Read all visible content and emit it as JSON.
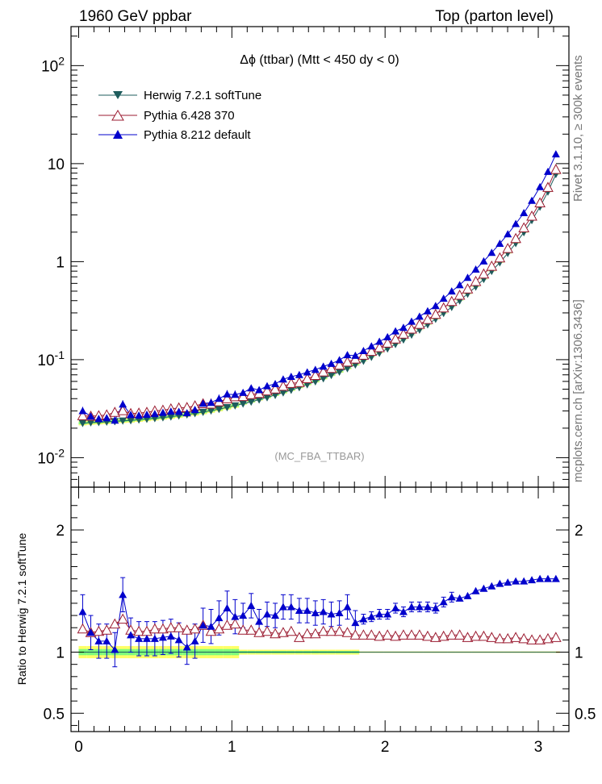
{
  "header": {
    "left": "1960 GeV ppbar",
    "right": "Top (parton level)"
  },
  "side": {
    "rivet": "Rivet 3.1.10, ≥ 300k events",
    "mcplots": "mcplots.cern.ch [arXiv:1306.3436]"
  },
  "colors": {
    "herwig": "#1e5c5c",
    "pythia6": "#9b1b30",
    "pythia8": "#0000cc",
    "band_green": "#7cfc7c",
    "band_yellow": "#ffff66"
  },
  "chart_data": [
    {
      "type": "line",
      "title": "Δϕ (ttbar) (Mtt < 450 dy < 0)",
      "watermark": "(MC_FBA_TTBAR)",
      "yscale": "log",
      "ylim": [
        0.005,
        250
      ],
      "xlim": [
        -0.05,
        3.2
      ],
      "xlabel": "",
      "ylabel": "",
      "ytick_labels": [
        "10^2",
        "10",
        "1",
        "10^-1",
        "10^-2"
      ],
      "legend_position": "top-left",
      "x": [
        0.026,
        0.079,
        0.131,
        0.183,
        0.236,
        0.288,
        0.34,
        0.393,
        0.445,
        0.497,
        0.55,
        0.602,
        0.654,
        0.707,
        0.759,
        0.812,
        0.864,
        0.916,
        0.969,
        1.021,
        1.073,
        1.126,
        1.178,
        1.23,
        1.283,
        1.335,
        1.387,
        1.44,
        1.492,
        1.545,
        1.597,
        1.649,
        1.702,
        1.754,
        1.806,
        1.859,
        1.911,
        1.963,
        2.016,
        2.068,
        2.12,
        2.173,
        2.225,
        2.278,
        2.33,
        2.382,
        2.435,
        2.487,
        2.539,
        2.592,
        2.644,
        2.696,
        2.749,
        2.801,
        2.853,
        2.906,
        2.958,
        3.011,
        3.063,
        3.115
      ],
      "series": [
        {
          "name": "Herwig 7.2.1 softTune",
          "marker": "triangle-down",
          "values": [
            0.0225,
            0.0228,
            0.023,
            0.0232,
            0.0235,
            0.0238,
            0.024,
            0.0244,
            0.0248,
            0.0252,
            0.0257,
            0.0262,
            0.0268,
            0.0275,
            0.0283,
            0.0292,
            0.0302,
            0.0313,
            0.0326,
            0.034,
            0.0355,
            0.0372,
            0.0391,
            0.0412,
            0.0435,
            0.0461,
            0.049,
            0.0522,
            0.0558,
            0.0598,
            0.0643,
            0.0694,
            0.0751,
            0.0815,
            0.0888,
            0.097,
            0.1064,
            0.1171,
            0.1294,
            0.1436,
            0.16,
            0.1792,
            0.2017,
            0.2283,
            0.26,
            0.298,
            0.344,
            0.4,
            0.469,
            0.555,
            0.663,
            0.801,
            0.98,
            1.22,
            1.54,
            1.99,
            2.64,
            3.62,
            5.17,
            7.8
          ]
        },
        {
          "name": "Pythia 6.428 370",
          "marker": "triangle-open",
          "values": [
            0.0268,
            0.0265,
            0.0268,
            0.0273,
            0.029,
            0.0302,
            0.0282,
            0.0285,
            0.029,
            0.03,
            0.0305,
            0.0315,
            0.0322,
            0.0325,
            0.0338,
            0.0355,
            0.0352,
            0.0372,
            0.0398,
            0.0418,
            0.042,
            0.044,
            0.0452,
            0.048,
            0.0502,
            0.0535,
            0.0572,
            0.0585,
            0.064,
            0.069,
            0.075,
            0.0815,
            0.088,
            0.0945,
            0.1015,
            0.111,
            0.1215,
            0.1325,
            0.1475,
            0.1625,
            0.182,
            0.205,
            0.229,
            0.257,
            0.29,
            0.337,
            0.392,
            0.454,
            0.526,
            0.628,
            0.748,
            0.898,
            1.092,
            1.36,
            1.72,
            2.21,
            2.91,
            3.98,
            5.72,
            8.72
          ]
        },
        {
          "name": "Pythia 8.212 default",
          "marker": "triangle-filled",
          "values": [
            0.03,
            0.0264,
            0.025,
            0.0254,
            0.024,
            0.035,
            0.0274,
            0.027,
            0.0275,
            0.028,
            0.0288,
            0.0296,
            0.0295,
            0.0285,
            0.0308,
            0.0357,
            0.0364,
            0.04,
            0.0444,
            0.044,
            0.046,
            0.0512,
            0.049,
            0.0538,
            0.0566,
            0.063,
            0.067,
            0.07,
            0.0745,
            0.079,
            0.0852,
            0.091,
            0.099,
            0.1115,
            0.11,
            0.123,
            0.137,
            0.153,
            0.17,
            0.195,
            0.212,
            0.245,
            0.276,
            0.313,
            0.354,
            0.42,
            0.498,
            0.578,
            0.687,
            0.833,
            1.01,
            1.235,
            1.53,
            1.91,
            2.43,
            3.14,
            4.19,
            5.79,
            8.27,
            12.5
          ]
        }
      ]
    },
    {
      "type": "line",
      "title": "",
      "xlabel": "",
      "ylabel": "Ratio to Herwig 7.2.1 softTune",
      "ylim": [
        0.35,
        2.35
      ],
      "xlim": [
        -0.05,
        3.2
      ],
      "ytick_labels": [
        "0.5",
        "1",
        "2"
      ],
      "xtick_labels": [
        "0",
        "1",
        "2",
        "3"
      ],
      "series": [
        {
          "name": "Pythia 6.428 370",
          "values": [
            1.19,
            1.16,
            1.17,
            1.18,
            1.23,
            1.27,
            1.18,
            1.17,
            1.17,
            1.19,
            1.19,
            1.2,
            1.2,
            1.18,
            1.19,
            1.22,
            1.17,
            1.19,
            1.22,
            1.23,
            1.18,
            1.18,
            1.16,
            1.17,
            1.15,
            1.16,
            1.17,
            1.12,
            1.15,
            1.15,
            1.17,
            1.17,
            1.17,
            1.16,
            1.14,
            1.14,
            1.14,
            1.13,
            1.14,
            1.13,
            1.14,
            1.14,
            1.14,
            1.13,
            1.12,
            1.13,
            1.14,
            1.14,
            1.12,
            1.13,
            1.13,
            1.12,
            1.11,
            1.11,
            1.12,
            1.11,
            1.1,
            1.1,
            1.11,
            1.12
          ]
        },
        {
          "name": "Pythia 8.212 default",
          "values": [
            1.33,
            1.16,
            1.09,
            1.09,
            1.02,
            1.47,
            1.14,
            1.11,
            1.11,
            1.11,
            1.12,
            1.13,
            1.1,
            1.04,
            1.09,
            1.22,
            1.21,
            1.28,
            1.36,
            1.29,
            1.3,
            1.38,
            1.25,
            1.31,
            1.3,
            1.37,
            1.37,
            1.34,
            1.34,
            1.32,
            1.33,
            1.31,
            1.32,
            1.37,
            1.24,
            1.27,
            1.29,
            1.31,
            1.31,
            1.36,
            1.33,
            1.37,
            1.37,
            1.37,
            1.36,
            1.41,
            1.45,
            1.44,
            1.46,
            1.5,
            1.52,
            1.54,
            1.56,
            1.57,
            1.58,
            1.58,
            1.59,
            1.6,
            1.6,
            1.6
          ]
        }
      ]
    }
  ]
}
